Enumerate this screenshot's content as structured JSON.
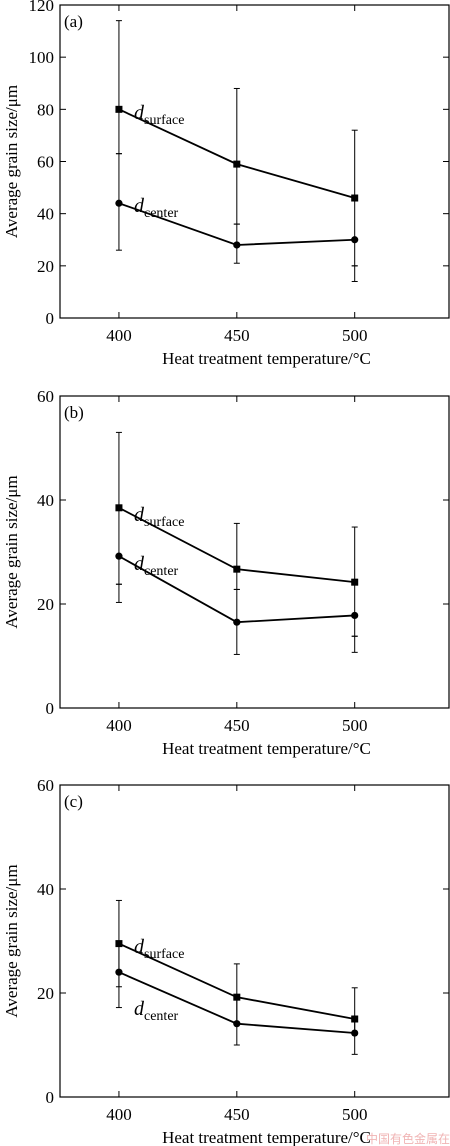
{
  "chart_data": [
    {
      "type": "line",
      "panel_label": "(a)",
      "xlabel": "Heat treatment temperature/°C",
      "ylabel": "Average grain size/μm",
      "x": [
        400,
        450,
        500
      ],
      "xticks": [
        "400",
        "450",
        "500"
      ],
      "xlim": [
        375,
        540
      ],
      "yticks": [
        "0",
        "20",
        "40",
        "60",
        "80",
        "100",
        "120"
      ],
      "ylim": [
        0,
        120
      ],
      "series": [
        {
          "name_base": "d",
          "name_sub": "surface",
          "marker": "square",
          "values": [
            80,
            59,
            46
          ],
          "err_low": [
            63,
            36,
            20
          ],
          "err_high": [
            114,
            88,
            72
          ]
        },
        {
          "name_base": "d",
          "name_sub": "center",
          "marker": "circle",
          "values": [
            44,
            28,
            30
          ],
          "err_low": [
            26,
            21,
            14
          ],
          "err_high": [
            63,
            36,
            20
          ]
        }
      ]
    },
    {
      "type": "line",
      "panel_label": "(b)",
      "xlabel": "Heat treatment temperature/°C",
      "ylabel": "Average grain size/μm",
      "x": [
        400,
        450,
        500
      ],
      "xticks": [
        "400",
        "450",
        "500"
      ],
      "xlim": [
        375,
        540
      ],
      "yticks": [
        "0",
        "20",
        "40",
        "60"
      ],
      "ylim": [
        0,
        60
      ],
      "series": [
        {
          "name_base": "d",
          "name_sub": "surface",
          "marker": "square",
          "values": [
            38.5,
            26.7,
            24.2
          ],
          "err_low": [
            23.8,
            22.8,
            13.8
          ],
          "err_high": [
            53,
            35.5,
            34.8
          ]
        },
        {
          "name_base": "d",
          "name_sub": "center",
          "marker": "circle",
          "values": [
            29.2,
            16.5,
            17.8
          ],
          "err_low": [
            20.3,
            10.3,
            10.7
          ],
          "err_high": [
            23.8,
            22.8,
            13.8
          ]
        }
      ]
    },
    {
      "type": "line",
      "panel_label": "(c)",
      "xlabel": "Heat treatment temperature/°C",
      "ylabel": "Average grain size/μm",
      "x": [
        400,
        450,
        500
      ],
      "xticks": [
        "400",
        "450",
        "500"
      ],
      "xlim": [
        375,
        540
      ],
      "yticks": [
        "0",
        "20",
        "40",
        "60"
      ],
      "ylim": [
        0,
        60
      ],
      "series": [
        {
          "name_base": "d",
          "name_sub": "surface",
          "marker": "square",
          "values": [
            29.5,
            19.2,
            15.0
          ],
          "err_low": [
            21.2,
            14.2,
            12.3
          ],
          "err_high": [
            37.8,
            25.6,
            21.0
          ]
        },
        {
          "name_base": "d",
          "name_sub": "center",
          "marker": "circle",
          "values": [
            24.0,
            14.1,
            12.3
          ],
          "err_low": [
            17.2,
            10.0,
            8.2
          ],
          "err_high": [
            29.5,
            19.2,
            15.0
          ]
        }
      ]
    }
  ],
  "watermark": "中国有色金属在线"
}
